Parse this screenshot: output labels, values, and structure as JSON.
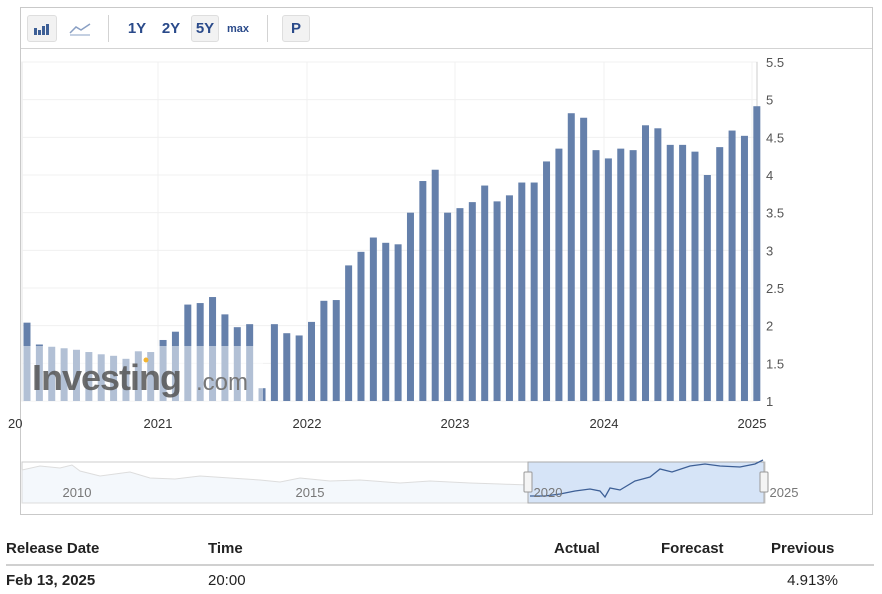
{
  "toolbar": {
    "chart_types": [
      "bar-chart-icon",
      "line-chart-icon"
    ],
    "ranges": [
      "1Y",
      "2Y",
      "5Y",
      "max"
    ],
    "selected_range": "5Y",
    "p_label": "P"
  },
  "watermark": "Investing.com",
  "chart_data": {
    "type": "bar",
    "color": "#6580ab",
    "ylim": [
      1,
      5.5
    ],
    "yticks": [
      "1",
      "1.5",
      "2",
      "2.5",
      "3",
      "3.5",
      "4",
      "4.5",
      "5",
      "5.5"
    ],
    "xticks": [
      "20",
      "2021",
      "2022",
      "2023",
      "2024",
      "2025"
    ],
    "categories": [
      "2020-02",
      "2020-03",
      "2020-04",
      "2020-05",
      "2020-06",
      "2020-07",
      "2020-08",
      "2020-09",
      "2020-10",
      "2020-11",
      "2020-12",
      "2021-01",
      "2021-02",
      "2021-03",
      "2021-04",
      "2021-05",
      "2021-06",
      "2021-07",
      "2021-08",
      "2021-09",
      "2021-10",
      "2021-11",
      "2021-12",
      "2022-01",
      "2022-02",
      "2022-03",
      "2022-04",
      "2022-05",
      "2022-06",
      "2022-07",
      "2022-08",
      "2022-09",
      "2022-10",
      "2022-11",
      "2022-12",
      "2023-01",
      "2023-02",
      "2023-03",
      "2023-04",
      "2023-05",
      "2023-06",
      "2023-07",
      "2023-08",
      "2023-09",
      "2023-10",
      "2023-11",
      "2023-12",
      "2024-01",
      "2024-02",
      "2024-03",
      "2024-04",
      "2024-05",
      "2024-06",
      "2024-07",
      "2024-08",
      "2024-09",
      "2024-10",
      "2024-11",
      "2024-12",
      "2025-01"
    ],
    "values": [
      2.04,
      1.75,
      1.72,
      1.7,
      1.68,
      1.65,
      1.62,
      1.6,
      1.56,
      1.66,
      1.65,
      1.81,
      1.92,
      2.28,
      2.3,
      2.38,
      2.15,
      1.98,
      2.02,
      1.17,
      2.02,
      1.9,
      1.87,
      2.05,
      2.33,
      2.34,
      2.8,
      2.98,
      3.17,
      3.1,
      3.08,
      3.5,
      3.92,
      4.07,
      3.5,
      3.56,
      3.64,
      3.86,
      3.65,
      3.73,
      3.9,
      3.9,
      4.18,
      4.35,
      4.82,
      4.76,
      4.33,
      4.22,
      4.35,
      4.33,
      4.66,
      4.62,
      4.4,
      4.4,
      4.31,
      4.0,
      4.37,
      4.59,
      4.52,
      4.913
    ],
    "navigator_labels": [
      "2010",
      "2015",
      "2020",
      "2025"
    ]
  },
  "table": {
    "headers": [
      "Release Date",
      "Time",
      "Actual",
      "Forecast",
      "Previous"
    ],
    "rows": [
      {
        "date": "Feb 13, 2025",
        "time": "20:00",
        "actual": "",
        "forecast": "",
        "previous": "4.913%"
      }
    ]
  }
}
